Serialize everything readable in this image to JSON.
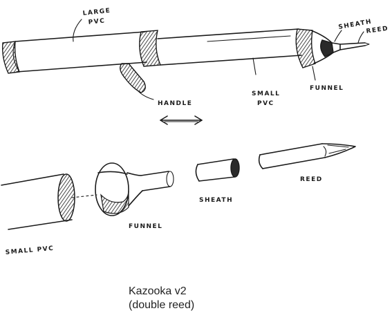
{
  "labels": {
    "large_pvc_1": "LARGE",
    "large_pvc_2": "PVC",
    "sheath_top": "SHEATH",
    "reed_top": "REED",
    "handle": "HANDLE",
    "small_pvc_top_1": "SMALL",
    "small_pvc_top_2": "PVC",
    "funnel_top": "FUNNEL",
    "reed_bottom": "REED",
    "sheath_bottom": "SHEATH",
    "funnel_bottom": "FUNNEL",
    "small_pvc_bottom": "SMALL PVC"
  },
  "caption": {
    "line1": "Kazooka v2",
    "line2": "(double reed)"
  }
}
